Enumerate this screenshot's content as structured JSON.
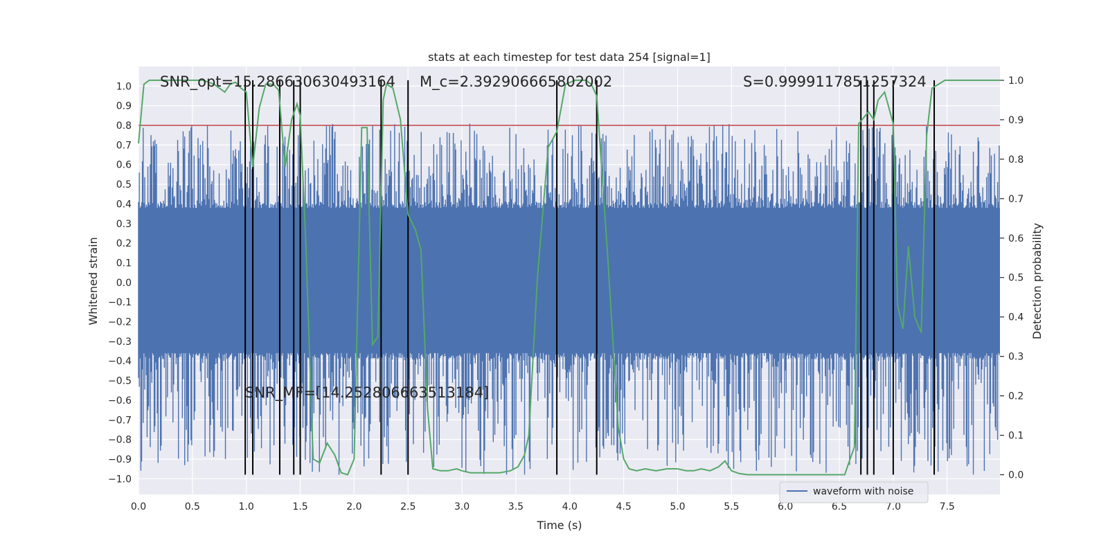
{
  "chart_data": {
    "type": "line",
    "title": "stats at each timestep for test data 254 [signal=1]",
    "xlabel": "Time (s)",
    "ylabel_left": "Whitened strain",
    "ylabel_right": "Detection probability",
    "xlim": [
      0.0,
      7.99
    ],
    "ylim_left": [
      -1.08,
      1.1
    ],
    "ylim_right": [
      -0.05,
      1.035
    ],
    "xticks": [
      0.0,
      0.5,
      1.0,
      1.5,
      2.0,
      2.5,
      3.0,
      3.5,
      4.0,
      4.5,
      5.0,
      5.5,
      6.0,
      6.5,
      7.0,
      7.5
    ],
    "xtick_labels": [
      "0.0",
      "0.5",
      "1.0",
      "1.5",
      "2.0",
      "2.5",
      "3.0",
      "3.5",
      "4.0",
      "4.5",
      "5.0",
      "5.5",
      "6.0",
      "6.5",
      "7.0",
      "7.5"
    ],
    "yticks_left": [
      1.0,
      0.9,
      0.8,
      0.7,
      0.6,
      0.5,
      0.4,
      0.3,
      0.2,
      0.1,
      0.0,
      -0.1,
      -0.2,
      -0.3,
      -0.4,
      -0.5,
      -0.6,
      -0.7,
      -0.8,
      -0.9,
      -1.0
    ],
    "ytick_labels_left": [
      "1.0",
      "0.9",
      "0.8",
      "0.7",
      "0.6",
      "0.5",
      "0.4",
      "0.3",
      "0.2",
      "0.1",
      "0.0",
      "−0.1",
      "−0.2",
      "−0.3",
      "−0.4",
      "−0.5",
      "−0.6",
      "−0.7",
      "−0.8",
      "−0.9",
      "−1.0"
    ],
    "yticks_right": [
      1.0,
      0.9,
      0.8,
      0.7,
      0.6,
      0.5,
      0.4,
      0.3,
      0.2,
      0.1,
      0.0
    ],
    "ytick_labels_right": [
      "1.0",
      "0.9",
      "0.8",
      "0.7",
      "0.6",
      "0.5",
      "0.4",
      "0.3",
      "0.2",
      "0.1",
      "0.0"
    ],
    "threshold": {
      "value": 0.8,
      "color": "#c44e52"
    },
    "noise_band": {
      "core_lo": -0.39,
      "core_hi": 0.41,
      "spike_peak_max": 0.81,
      "spike_trough_min": -0.98
    },
    "event_lines_x": [
      0.99,
      1.06,
      1.31,
      1.44,
      1.5,
      2.25,
      2.5,
      3.88,
      4.25,
      6.7,
      6.76,
      6.82,
      7.0,
      7.38
    ],
    "event_line_range_right": [
      0.0,
      1.0
    ],
    "series": [
      {
        "name": "waveform with noise",
        "color": "#4c72b0",
        "axis": "left",
        "legend": true
      },
      {
        "name": "detection probability",
        "color": "#55a868",
        "axis": "right",
        "legend": false,
        "x": [
          0.0,
          0.05,
          0.1,
          0.2,
          0.3,
          0.4,
          0.5,
          0.6,
          0.7,
          0.8,
          0.85,
          0.9,
          0.95,
          1.0,
          1.06,
          1.12,
          1.18,
          1.25,
          1.3,
          1.36,
          1.42,
          1.47,
          1.5,
          1.55,
          1.62,
          1.68,
          1.75,
          1.82,
          1.88,
          1.94,
          2.0,
          2.07,
          2.12,
          2.17,
          2.22,
          2.27,
          2.3,
          2.36,
          2.43,
          2.5,
          2.57,
          2.62,
          2.68,
          2.73,
          2.8,
          2.87,
          2.95,
          3.0,
          3.08,
          3.15,
          3.25,
          3.35,
          3.45,
          3.52,
          3.58,
          3.62,
          3.7,
          3.8,
          3.88,
          3.96,
          4.05,
          4.15,
          4.2,
          4.25,
          4.35,
          4.45,
          4.5,
          4.55,
          4.62,
          4.7,
          4.8,
          4.9,
          5.0,
          5.08,
          5.15,
          5.22,
          5.3,
          5.38,
          5.44,
          5.5,
          5.57,
          5.65,
          5.8,
          6.0,
          6.2,
          6.4,
          6.55,
          6.6,
          6.64,
          6.68,
          6.71,
          6.77,
          6.82,
          6.86,
          6.92,
          6.97,
          7.0,
          7.04,
          7.09,
          7.14,
          7.2,
          7.26,
          7.31,
          7.36,
          7.42,
          7.48,
          7.6,
          7.8,
          7.99
        ],
        "y": [
          0.84,
          0.99,
          1.0,
          1.0,
          1.0,
          1.0,
          1.0,
          1.0,
          0.99,
          0.97,
          0.99,
          0.995,
          0.98,
          0.97,
          0.78,
          0.93,
          0.99,
          0.99,
          0.975,
          0.78,
          0.9,
          0.94,
          0.91,
          0.6,
          0.04,
          0.03,
          0.08,
          0.05,
          0.005,
          0.0,
          0.04,
          0.88,
          0.88,
          0.33,
          0.35,
          0.95,
          0.99,
          0.98,
          0.9,
          0.66,
          0.62,
          0.57,
          0.17,
          0.015,
          0.01,
          0.01,
          0.015,
          0.01,
          0.005,
          0.005,
          0.005,
          0.005,
          0.01,
          0.02,
          0.05,
          0.1,
          0.5,
          0.83,
          0.87,
          0.99,
          1.0,
          1.0,
          0.99,
          0.96,
          0.56,
          0.12,
          0.04,
          0.015,
          0.01,
          0.015,
          0.01,
          0.015,
          0.015,
          0.01,
          0.01,
          0.015,
          0.01,
          0.02,
          0.035,
          0.01,
          0.003,
          0.0,
          0.0,
          0.0,
          0.0,
          0.0,
          0.0,
          0.04,
          0.07,
          0.89,
          0.9,
          0.92,
          0.9,
          0.95,
          0.97,
          0.92,
          0.89,
          0.43,
          0.37,
          0.58,
          0.4,
          0.36,
          0.86,
          0.98,
          0.99,
          1.0,
          1.0,
          1.0,
          1.0
        ]
      }
    ],
    "legend": {
      "entries": [
        "waveform with noise"
      ],
      "placement": "lower-right"
    },
    "annotations": {
      "snr_opt": "SNR_opt=15.286630630493164",
      "mc": "M_c=2.392906665802002",
      "s_value": "S=0.9999117851257324",
      "snr_mf": "SNR_MF=[14.252806663513184]"
    },
    "colors": {
      "background": "#eaeaf2",
      "grid": "#ffffff",
      "event_line": "#000000"
    }
  }
}
